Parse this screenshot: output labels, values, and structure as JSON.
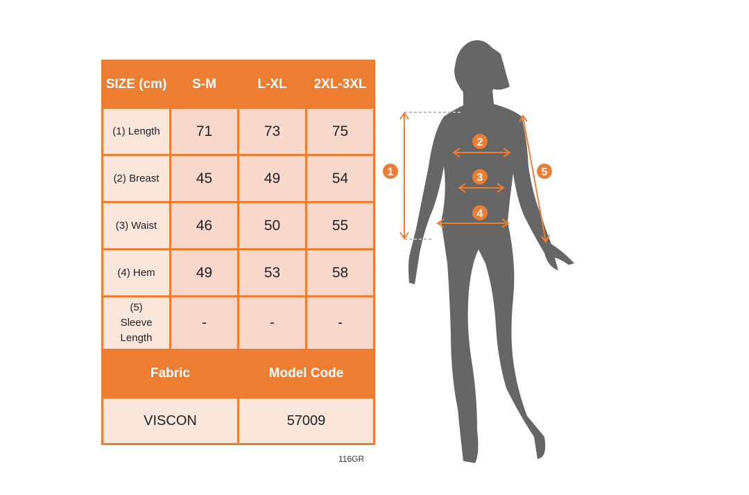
{
  "table": {
    "headers": [
      "SIZE (cm)",
      "S-M",
      "L-XL",
      "2XL-3XL"
    ],
    "rows": [
      {
        "label": "(1) Length",
        "values": [
          "71",
          "73",
          "75"
        ]
      },
      {
        "label": "(2) Breast",
        "values": [
          "45",
          "49",
          "54"
        ]
      },
      {
        "label": "(3) Waist",
        "values": [
          "46",
          "50",
          "55"
        ]
      },
      {
        "label": "(4) Hem",
        "values": [
          "49",
          "53",
          "58"
        ]
      },
      {
        "label": "(5) Sleeve Length",
        "values": [
          "-",
          "-",
          "-"
        ]
      }
    ],
    "fabric_label": "Fabric",
    "model_code_label": "Model Code",
    "fabric_value": "VISCON",
    "model_code_value": "57009"
  },
  "product_code": "116GR",
  "figure": {
    "markers": [
      "1",
      "2",
      "3",
      "4",
      "5"
    ],
    "accent_color": "#ed7d31",
    "silhouette_color": "#666666"
  }
}
